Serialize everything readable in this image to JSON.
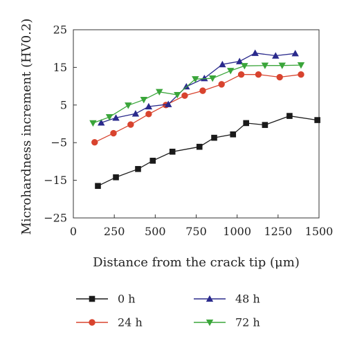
{
  "chart_data": {
    "type": "line",
    "xlabel": "Distance from the crack tip (μm)",
    "ylabel": "Microhardness increment (HV0.2)",
    "xlim": [
      0,
      1500
    ],
    "ylim": [
      -25,
      25
    ],
    "x_ticks": [
      0,
      250,
      500,
      750,
      1000,
      1250,
      1500
    ],
    "y_ticks": [
      25,
      15,
      5,
      -5,
      -15,
      -25
    ],
    "x_tick_labels": [
      "0",
      "250",
      "500",
      "750",
      "1000",
      "1250",
      "1500"
    ],
    "y_tick_labels": [
      "25",
      "15",
      "5",
      "−5",
      "−15",
      "−25"
    ],
    "grid": false,
    "legend_position": "bottom",
    "series": [
      {
        "name": "0 h",
        "color": "#1a1a1a",
        "marker": "square",
        "x": [
          150,
          260,
          395,
          485,
          605,
          770,
          860,
          975,
          1055,
          1170,
          1320,
          1490
        ],
        "y": [
          -16.5,
          -14.2,
          -12,
          -9.8,
          -7.4,
          -6.1,
          -3.7,
          -2.8,
          0.2,
          -0.3,
          2.1,
          1
        ]
      },
      {
        "name": "24 h",
        "color": "#d8432e",
        "marker": "circle",
        "x": [
          130,
          245,
          350,
          460,
          565,
          680,
          790,
          905,
          1025,
          1130,
          1260,
          1390
        ],
        "y": [
          -4.9,
          -2.5,
          -0.2,
          2.6,
          5,
          7.5,
          8.8,
          10.5,
          13.1,
          13.1,
          12.4,
          13.1
        ]
      },
      {
        "name": "48 h",
        "color": "#2a2a8c",
        "marker": "triangle-up",
        "x": [
          170,
          260,
          380,
          460,
          580,
          690,
          800,
          910,
          1015,
          1110,
          1235,
          1355
        ],
        "y": [
          0.3,
          1.6,
          2.7,
          4.6,
          5.2,
          9.9,
          12.1,
          15.8,
          16.6,
          18.8,
          18.1,
          18.7
        ]
      },
      {
        "name": "72 h",
        "color": "#3aa53a",
        "marker": "triangle-down",
        "x": [
          120,
          220,
          335,
          430,
          525,
          635,
          745,
          850,
          960,
          1045,
          1170,
          1275,
          1390
        ],
        "y": [
          0.2,
          1.8,
          4.9,
          6.4,
          8.5,
          7.7,
          11.9,
          12.1,
          14.1,
          15.4,
          15.5,
          15.5,
          15.6
        ]
      }
    ]
  }
}
